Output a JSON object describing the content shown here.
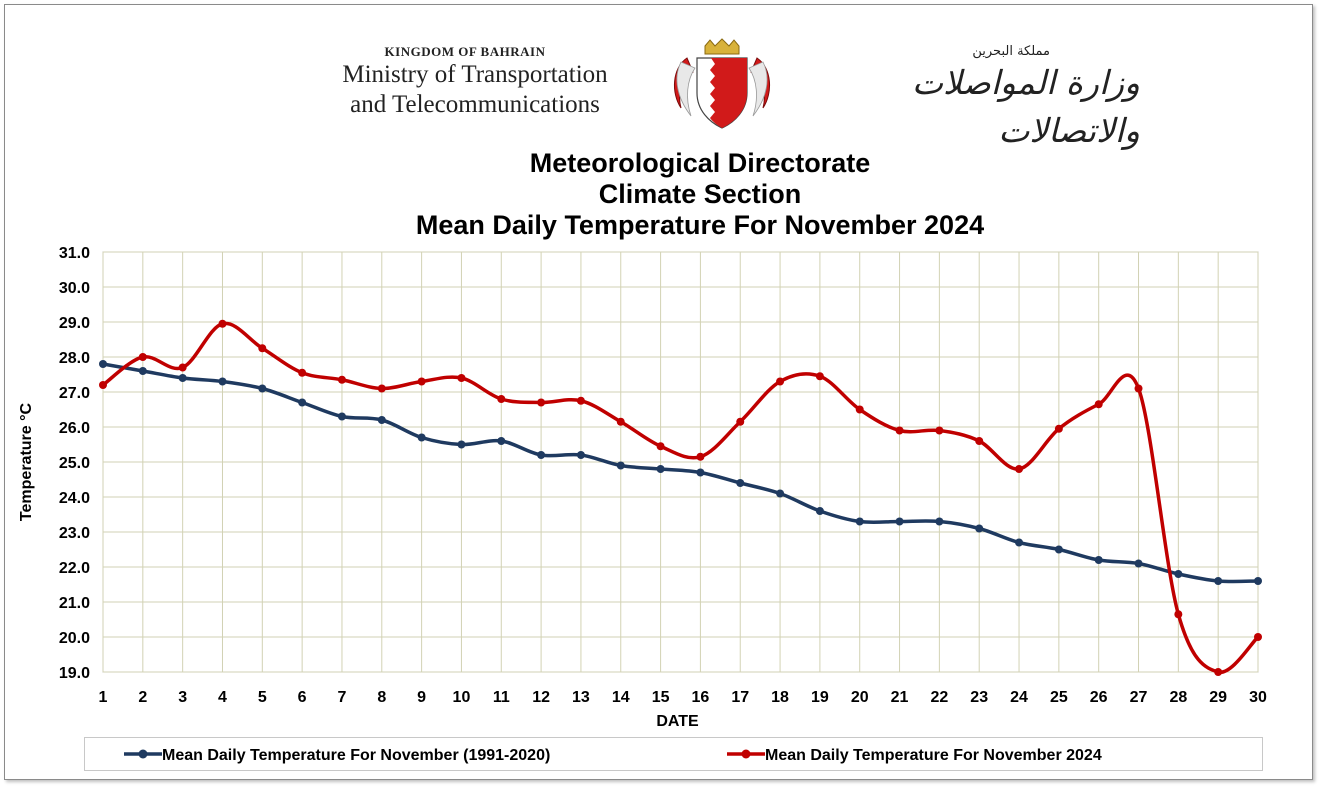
{
  "header": {
    "kingdom_en": "KINGDOM OF BAHRAIN",
    "ministry_en_line1": "Ministry of Transportation",
    "ministry_en_line2": "and Telecommunications",
    "kingdom_ar": "مملكة البحرين",
    "ministry_ar": "وزارة المواصلات والاتصالات",
    "emblem": "bahrain-coat-of-arms"
  },
  "colors": {
    "normal_series": "#1f3a60",
    "series_2024": "#c00000",
    "grid": "#d2d2b4",
    "emblem_red": "#d11a1a"
  },
  "chart_data": {
    "type": "line",
    "title_lines": [
      "Meteorological Directorate",
      "Climate Section",
      "Mean Daily Temperature For November 2024"
    ],
    "xlabel": "DATE",
    "ylabel": "Temperature °C",
    "x": [
      1,
      2,
      3,
      4,
      5,
      6,
      7,
      8,
      9,
      10,
      11,
      12,
      13,
      14,
      15,
      16,
      17,
      18,
      19,
      20,
      21,
      22,
      23,
      24,
      25,
      26,
      27,
      28,
      29,
      30
    ],
    "xlim": [
      1,
      30
    ],
    "ylim": [
      19.0,
      31.0
    ],
    "yticks": [
      "19.0",
      "20.0",
      "21.0",
      "22.0",
      "23.0",
      "24.0",
      "25.0",
      "26.0",
      "27.0",
      "28.0",
      "29.0",
      "30.0",
      "31.0"
    ],
    "grid": true,
    "legend_position": "bottom",
    "series": [
      {
        "name": "Mean Daily Temperature For November (1991-2020)",
        "values": [
          27.8,
          27.6,
          27.4,
          27.3,
          27.1,
          26.7,
          26.3,
          26.2,
          25.7,
          25.5,
          25.6,
          25.2,
          25.2,
          24.9,
          24.8,
          24.7,
          24.4,
          24.1,
          23.6,
          23.3,
          23.3,
          23.3,
          23.1,
          22.7,
          22.5,
          22.2,
          22.1,
          21.8,
          21.6,
          21.6
        ]
      },
      {
        "name": "Mean Daily Temperature For November 2024",
        "values": [
          27.2,
          28.0,
          27.7,
          28.95,
          28.25,
          27.55,
          27.35,
          27.1,
          27.3,
          27.4,
          26.8,
          26.7,
          26.75,
          26.15,
          25.45,
          25.15,
          26.15,
          27.3,
          27.45,
          26.5,
          25.9,
          25.9,
          25.6,
          24.8,
          25.95,
          26.65,
          27.1,
          20.65,
          19.0,
          20.0
        ]
      }
    ]
  }
}
